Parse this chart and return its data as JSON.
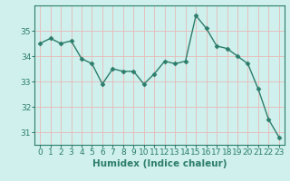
{
  "x": [
    0,
    1,
    2,
    3,
    4,
    5,
    6,
    7,
    8,
    9,
    10,
    11,
    12,
    13,
    14,
    15,
    16,
    17,
    18,
    19,
    20,
    21,
    22,
    23
  ],
  "y": [
    34.5,
    34.7,
    34.5,
    34.6,
    33.9,
    33.7,
    32.9,
    33.5,
    33.4,
    33.4,
    32.9,
    33.3,
    33.8,
    33.7,
    33.8,
    35.6,
    35.1,
    34.4,
    34.3,
    34.0,
    33.7,
    32.7,
    31.5,
    30.8
  ],
  "line_color": "#2d7d6b",
  "marker": "D",
  "markersize": 2.5,
  "linewidth": 1.0,
  "bg_color": "#cff0ec",
  "grid_color": "#e8b8b8",
  "axis_color": "#2d7d6b",
  "xlabel": "Humidex (Indice chaleur)",
  "ylim": [
    30.5,
    36.0
  ],
  "yticks": [
    31,
    32,
    33,
    34,
    35
  ],
  "xticks": [
    0,
    1,
    2,
    3,
    4,
    5,
    6,
    7,
    8,
    9,
    10,
    11,
    12,
    13,
    14,
    15,
    16,
    17,
    18,
    19,
    20,
    21,
    22,
    23
  ],
  "xlabel_fontsize": 7.5,
  "tick_fontsize": 6.5
}
